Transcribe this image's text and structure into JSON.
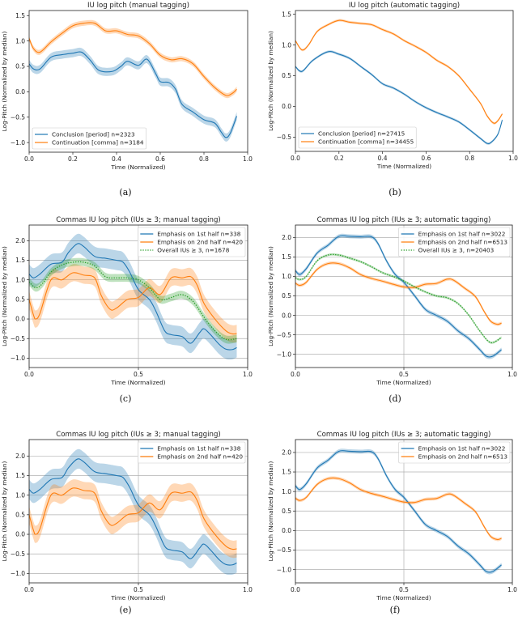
{
  "chart_data": [
    {
      "panel": "a",
      "caption": "(a)",
      "type": "line",
      "title": "IU log pitch (manual tagging)",
      "xlabel": "Time (Normalized)",
      "ylabel": "Log-Pitch (Normalized by median)",
      "xlim": [
        0,
        1
      ],
      "ylim": [
        -1.19,
        1.6
      ],
      "xticks": [
        0,
        0.2,
        0.4,
        0.6,
        0.8,
        1.0
      ],
      "xtick_labels": [
        "0.0",
        "0.2",
        "0.4",
        "0.6",
        "0.8",
        "1.0"
      ],
      "yticks": [
        -1,
        -0.5,
        0,
        0.5,
        1,
        1.5
      ],
      "ytick_labels": [
        "−1.0",
        "−0.5",
        "0.0",
        "0.5",
        "1.0",
        "1.5"
      ],
      "grid": false,
      "legend": "lower-left",
      "series": [
        {
          "name": "Conclusion [period] n=2323",
          "color": "#1f77b4",
          "style": "solid",
          "ci": 0.08,
          "x": [
            0,
            0.02,
            0.05,
            0.1,
            0.15,
            0.2,
            0.24,
            0.28,
            0.32,
            0.38,
            0.42,
            0.45,
            0.5,
            0.54,
            0.58,
            0.6,
            0.64,
            0.67,
            0.7,
            0.75,
            0.8,
            0.85,
            0.88,
            0.9,
            0.92,
            0.95
          ],
          "y": [
            0.55,
            0.45,
            0.45,
            0.68,
            0.73,
            0.76,
            0.78,
            0.62,
            0.42,
            0.4,
            0.5,
            0.6,
            0.52,
            0.64,
            0.35,
            0.2,
            0.18,
            0.05,
            -0.25,
            -0.4,
            -0.55,
            -0.62,
            -0.8,
            -0.9,
            -0.82,
            -0.48
          ]
        },
        {
          "name": "Continuation [comma] n=3184",
          "color": "#ff7f0e",
          "style": "solid",
          "ci": 0.05,
          "x": [
            0,
            0.02,
            0.05,
            0.1,
            0.15,
            0.2,
            0.25,
            0.3,
            0.35,
            0.4,
            0.45,
            0.5,
            0.55,
            0.6,
            0.65,
            0.7,
            0.75,
            0.8,
            0.85,
            0.9,
            0.93,
            0.95
          ],
          "y": [
            1.05,
            0.85,
            0.78,
            0.98,
            1.15,
            1.3,
            1.35,
            1.35,
            1.2,
            1.2,
            1.13,
            1.1,
            0.95,
            0.72,
            0.63,
            0.65,
            0.55,
            0.3,
            0.08,
            -0.07,
            -0.03,
            0.05
          ]
        }
      ]
    },
    {
      "panel": "b",
      "caption": "(b)",
      "type": "line",
      "title": "IU log pitch (automatic tagging)",
      "xlabel": "Time (Normalized)",
      "ylabel": "Log-Pitch (Normalized by median)",
      "xlim": [
        0,
        1
      ],
      "ylim": [
        -0.73,
        1.56
      ],
      "xticks": [
        0,
        0.2,
        0.4,
        0.6,
        0.8,
        1.0
      ],
      "xtick_labels": [
        "0.0",
        "0.2",
        "0.4",
        "0.6",
        "0.8",
        "1.0"
      ],
      "yticks": [
        -0.5,
        0,
        0.5,
        1,
        1.5
      ],
      "ytick_labels": [
        "−0.5",
        "0.0",
        "0.5",
        "1.0",
        "1.5"
      ],
      "grid": false,
      "legend": "lower-left",
      "series": [
        {
          "name": "Conclusion [period] n=27415",
          "color": "#1f77b4",
          "style": "solid",
          "ci": 0.02,
          "x": [
            0,
            0.03,
            0.08,
            0.15,
            0.2,
            0.25,
            0.3,
            0.35,
            0.4,
            0.45,
            0.5,
            0.55,
            0.6,
            0.65,
            0.7,
            0.75,
            0.8,
            0.85,
            0.88,
            0.9,
            0.93,
            0.95
          ],
          "y": [
            0.65,
            0.57,
            0.75,
            0.89,
            0.85,
            0.78,
            0.65,
            0.52,
            0.37,
            0.3,
            0.2,
            0.08,
            -0.02,
            -0.1,
            -0.17,
            -0.25,
            -0.38,
            -0.52,
            -0.6,
            -0.58,
            -0.45,
            -0.22
          ]
        },
        {
          "name": "Continuation [comma] n=34455",
          "color": "#ff7f0e",
          "style": "solid",
          "ci": 0.02,
          "x": [
            0,
            0.03,
            0.06,
            0.1,
            0.15,
            0.2,
            0.25,
            0.3,
            0.35,
            0.4,
            0.45,
            0.5,
            0.55,
            0.6,
            0.65,
            0.7,
            0.75,
            0.8,
            0.85,
            0.88,
            0.91,
            0.93,
            0.95
          ],
          "y": [
            1.07,
            0.92,
            1.0,
            1.22,
            1.33,
            1.4,
            1.37,
            1.35,
            1.33,
            1.25,
            1.18,
            1.07,
            0.98,
            0.88,
            0.75,
            0.65,
            0.5,
            0.28,
            0.05,
            -0.15,
            -0.27,
            -0.23,
            -0.12
          ]
        }
      ]
    },
    {
      "panel": "c",
      "caption": "(c)",
      "type": "line",
      "title": "Commas IU log pitch (IUs ≥ 3; manual tagging)",
      "xlabel": "Time (Normalized)",
      "ylabel": "Log-Pitch (Normalized by median)",
      "xlim": [
        0,
        1
      ],
      "ylim": [
        -1.24,
        2.4
      ],
      "xticks": [
        0,
        0.5,
        1.0
      ],
      "xtick_labels": [
        "0.0",
        "0.5",
        "1.0"
      ],
      "yticks": [
        -1,
        -0.5,
        0,
        0.5,
        1,
        1.5,
        2
      ],
      "ytick_labels": [
        "−1.0",
        "−0.5",
        "0.0",
        "0.5",
        "1.0",
        "1.5",
        "2.0"
      ],
      "grid": true,
      "legend": "upper-right",
      "series": [
        {
          "name": "Emphasis on 1st half n=338",
          "color": "#1f77b4",
          "style": "solid",
          "ci": 0.25,
          "x": [
            0,
            0.02,
            0.05,
            0.1,
            0.15,
            0.18,
            0.22,
            0.25,
            0.3,
            0.35,
            0.4,
            0.43,
            0.46,
            0.5,
            0.55,
            0.58,
            0.62,
            0.65,
            0.7,
            0.74,
            0.78,
            0.8,
            0.83,
            0.87,
            0.9,
            0.93,
            0.95
          ],
          "y": [
            1.15,
            1.05,
            1.15,
            1.4,
            1.45,
            1.7,
            1.92,
            1.85,
            1.6,
            1.55,
            1.5,
            1.45,
            1.2,
            0.75,
            0.5,
            0.2,
            -0.3,
            -0.4,
            -0.45,
            -0.62,
            -0.35,
            -0.25,
            -0.4,
            -0.65,
            -0.77,
            -0.78,
            -0.73
          ]
        },
        {
          "name": "Emphasis on 2nd half n=420",
          "color": "#ff7f0e",
          "style": "solid",
          "ci": 0.22,
          "x": [
            0,
            0.02,
            0.03,
            0.05,
            0.1,
            0.15,
            0.2,
            0.25,
            0.3,
            0.33,
            0.37,
            0.4,
            0.45,
            0.5,
            0.55,
            0.6,
            0.65,
            0.7,
            0.74,
            0.77,
            0.8,
            0.85,
            0.9,
            0.93,
            0.95
          ],
          "y": [
            0.5,
            0.1,
            0.0,
            0.15,
            1.0,
            1.0,
            1.18,
            1.12,
            1.05,
            0.6,
            0.25,
            0.28,
            0.5,
            0.55,
            0.8,
            0.63,
            1.05,
            1.05,
            1.08,
            0.85,
            0.4,
            0.0,
            -0.3,
            -0.38,
            -0.37
          ]
        },
        {
          "name": "Overall IUs ≥ 3, n=1678",
          "color": "#2ca02c",
          "style": "dotted",
          "ci": 0.1,
          "x": [
            0,
            0.03,
            0.06,
            0.1,
            0.15,
            0.2,
            0.25,
            0.3,
            0.35,
            0.4,
            0.45,
            0.5,
            0.55,
            0.6,
            0.65,
            0.7,
            0.75,
            0.8,
            0.85,
            0.9,
            0.95
          ],
          "y": [
            0.95,
            0.8,
            0.9,
            1.2,
            1.38,
            1.45,
            1.45,
            1.35,
            1.08,
            1.05,
            1.05,
            1.0,
            0.8,
            0.5,
            0.55,
            0.62,
            0.45,
            0.05,
            -0.3,
            -0.52,
            -0.5
          ]
        }
      ]
    },
    {
      "panel": "d",
      "caption": "(d)",
      "type": "line",
      "title": "Commas IU log pitch (IUs ≥ 3; automatic tagging)",
      "xlabel": "Time (Normalized)",
      "ylabel": "Log-Pitch (Normalized by median)",
      "xlim": [
        0,
        1
      ],
      "ylim": [
        -1.34,
        2.32
      ],
      "xticks": [
        0,
        0.5,
        1.0
      ],
      "xtick_labels": [
        "0.0",
        "0.5",
        "1.0"
      ],
      "yticks": [
        -1,
        -0.5,
        0,
        0.5,
        1,
        1.5,
        2
      ],
      "ytick_labels": [
        "−1.0",
        "−0.5",
        "0.0",
        "0.5",
        "1.0",
        "1.5",
        "2.0"
      ],
      "grid": true,
      "legend": "upper-right",
      "series": [
        {
          "name": "Emphasis on 1st half n=3022",
          "color": "#1f77b4",
          "style": "solid",
          "ci": 0.05,
          "x": [
            0,
            0.02,
            0.05,
            0.1,
            0.15,
            0.2,
            0.25,
            0.3,
            0.35,
            0.38,
            0.42,
            0.46,
            0.5,
            0.55,
            0.6,
            0.65,
            0.7,
            0.75,
            0.8,
            0.85,
            0.88,
            0.91,
            0.95
          ],
          "y": [
            1.15,
            1.05,
            1.2,
            1.6,
            1.8,
            2.03,
            2.03,
            2.02,
            2.02,
            1.85,
            1.4,
            1.05,
            0.85,
            0.5,
            0.15,
            0.0,
            -0.15,
            -0.4,
            -0.6,
            -0.88,
            -1.05,
            -1.05,
            -0.88
          ]
        },
        {
          "name": "Emphasis on 2nd half n=6513",
          "color": "#ff7f0e",
          "style": "solid",
          "ci": 0.04,
          "x": [
            0,
            0.02,
            0.05,
            0.1,
            0.15,
            0.2,
            0.25,
            0.3,
            0.35,
            0.4,
            0.45,
            0.5,
            0.55,
            0.6,
            0.65,
            0.7,
            0.73,
            0.78,
            0.83,
            0.87,
            0.9,
            0.93,
            0.95
          ],
          "y": [
            0.83,
            0.77,
            0.85,
            1.18,
            1.33,
            1.33,
            1.22,
            1.05,
            0.95,
            0.88,
            0.8,
            0.73,
            0.72,
            0.8,
            0.82,
            0.93,
            0.9,
            0.7,
            0.48,
            0.1,
            -0.15,
            -0.23,
            -0.2
          ]
        },
        {
          "name": "Overall IUs ≥ 3, n=20403",
          "color": "#2ca02c",
          "style": "dotted",
          "ci": 0.03,
          "x": [
            0,
            0.02,
            0.05,
            0.1,
            0.15,
            0.2,
            0.25,
            0.3,
            0.35,
            0.4,
            0.45,
            0.5,
            0.55,
            0.6,
            0.65,
            0.7,
            0.75,
            0.8,
            0.85,
            0.9,
            0.95
          ],
          "y": [
            0.97,
            0.92,
            1.0,
            1.4,
            1.55,
            1.55,
            1.47,
            1.38,
            1.25,
            1.1,
            1.0,
            0.88,
            0.73,
            0.6,
            0.5,
            0.45,
            0.3,
            0.0,
            -0.4,
            -0.7,
            -0.57
          ]
        }
      ]
    },
    {
      "panel": "e",
      "caption": "(e)",
      "type": "line",
      "title": "Commas IU log pitch (IUs ≥ 3; manual tagging)",
      "xlabel": "Time (Normalized)",
      "ylabel": "Log-Pitch (Normalized by median)",
      "xlim": [
        0,
        1
      ],
      "ylim": [
        -1.24,
        2.42
      ],
      "xticks": [
        0,
        0.5,
        1.0
      ],
      "xtick_labels": [
        "0.0",
        "0.5",
        "1.0"
      ],
      "yticks": [
        -1,
        -0.5,
        0,
        0.5,
        1,
        1.5,
        2
      ],
      "ytick_labels": [
        "−1.0",
        "−0.5",
        "0.0",
        "0.5",
        "1.0",
        "1.5",
        "2.0"
      ],
      "grid": true,
      "legend": "upper-right",
      "series": [
        {
          "name": "Emphasis on 1st half n=338",
          "color": "#1f77b4",
          "style": "solid",
          "ci": 0.25,
          "x": [
            0,
            0.02,
            0.05,
            0.1,
            0.15,
            0.18,
            0.22,
            0.25,
            0.3,
            0.35,
            0.4,
            0.43,
            0.46,
            0.5,
            0.55,
            0.58,
            0.62,
            0.65,
            0.7,
            0.74,
            0.78,
            0.8,
            0.83,
            0.87,
            0.9,
            0.93,
            0.95
          ],
          "y": [
            1.15,
            1.05,
            1.15,
            1.4,
            1.45,
            1.7,
            1.92,
            1.85,
            1.6,
            1.55,
            1.5,
            1.45,
            1.2,
            0.75,
            0.5,
            0.2,
            -0.3,
            -0.4,
            -0.45,
            -0.62,
            -0.35,
            -0.25,
            -0.4,
            -0.65,
            -0.77,
            -0.78,
            -0.73
          ]
        },
        {
          "name": "Emphasis on 2nd half n=420",
          "color": "#ff7f0e",
          "style": "solid",
          "ci": 0.22,
          "x": [
            0,
            0.02,
            0.03,
            0.05,
            0.1,
            0.15,
            0.2,
            0.25,
            0.3,
            0.33,
            0.37,
            0.4,
            0.45,
            0.5,
            0.55,
            0.6,
            0.65,
            0.7,
            0.74,
            0.77,
            0.8,
            0.85,
            0.9,
            0.93,
            0.95
          ],
          "y": [
            0.5,
            0.1,
            0.0,
            0.15,
            1.0,
            1.0,
            1.18,
            1.12,
            1.05,
            0.6,
            0.25,
            0.28,
            0.5,
            0.55,
            0.8,
            0.63,
            1.05,
            1.05,
            1.08,
            0.85,
            0.4,
            0.0,
            -0.3,
            -0.38,
            -0.37
          ]
        }
      ]
    },
    {
      "panel": "f",
      "caption": "(f)",
      "type": "line",
      "title": "Commas IU log pitch (IUs ≥ 3; automatic tagging)",
      "xlabel": "Time (Normalized)",
      "ylabel": "Log-Pitch (Normalized by median)",
      "xlim": [
        0,
        1
      ],
      "ylim": [
        -1.34,
        2.33
      ],
      "xticks": [
        0,
        0.5,
        1.0
      ],
      "xtick_labels": [
        "0.0",
        "0.5",
        "1.0"
      ],
      "yticks": [
        -1,
        -0.5,
        0,
        0.5,
        1,
        1.5,
        2
      ],
      "ytick_labels": [
        "−1.0",
        "−0.5",
        "0.0",
        "0.5",
        "1.0",
        "1.5",
        "2.0"
      ],
      "grid": true,
      "legend": "upper-right",
      "series": [
        {
          "name": "Emphasis on 1st half n=3022",
          "color": "#1f77b4",
          "style": "solid",
          "ci": 0.05,
          "x": [
            0,
            0.02,
            0.05,
            0.1,
            0.15,
            0.2,
            0.25,
            0.3,
            0.35,
            0.38,
            0.42,
            0.46,
            0.5,
            0.55,
            0.6,
            0.65,
            0.7,
            0.75,
            0.8,
            0.85,
            0.88,
            0.91,
            0.95
          ],
          "y": [
            1.15,
            1.05,
            1.2,
            1.6,
            1.8,
            2.03,
            2.03,
            2.02,
            2.02,
            1.85,
            1.4,
            1.05,
            0.85,
            0.5,
            0.15,
            0.0,
            -0.15,
            -0.4,
            -0.6,
            -0.88,
            -1.05,
            -1.05,
            -0.88
          ]
        },
        {
          "name": "Emphasis on 2nd half n=6513",
          "color": "#ff7f0e",
          "style": "solid",
          "ci": 0.04,
          "x": [
            0,
            0.02,
            0.05,
            0.1,
            0.15,
            0.2,
            0.25,
            0.3,
            0.35,
            0.4,
            0.45,
            0.5,
            0.55,
            0.6,
            0.65,
            0.7,
            0.73,
            0.78,
            0.83,
            0.87,
            0.9,
            0.93,
            0.95
          ],
          "y": [
            0.83,
            0.77,
            0.85,
            1.18,
            1.33,
            1.33,
            1.22,
            1.05,
            0.95,
            0.88,
            0.8,
            0.73,
            0.72,
            0.8,
            0.82,
            0.93,
            0.9,
            0.7,
            0.48,
            0.1,
            -0.15,
            -0.23,
            -0.2
          ]
        }
      ]
    }
  ]
}
